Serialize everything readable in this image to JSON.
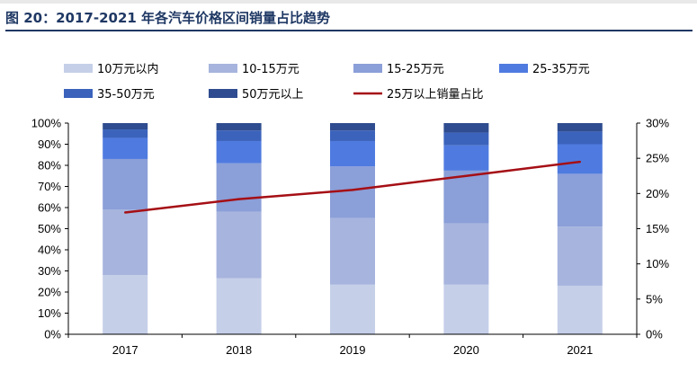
{
  "figure": {
    "title": "图 20：2017-2021 年各汽车价格区间销量占比趋势"
  },
  "chart_data": {
    "type": "bar",
    "stacked": true,
    "categories": [
      "2017",
      "2018",
      "2019",
      "2020",
      "2021"
    ],
    "series": [
      {
        "name": "10万元以内",
        "color": "#c5cfe8",
        "values": [
          28,
          26.5,
          23.5,
          23.5,
          23
        ]
      },
      {
        "name": "10-15万元",
        "color": "#a7b4dd",
        "values": [
          31,
          31.5,
          31.5,
          29,
          28
        ]
      },
      {
        "name": "15-25万元",
        "color": "#8b9fd8",
        "values": [
          24,
          23,
          24.5,
          25,
          25
        ]
      },
      {
        "name": "25-35万元",
        "color": "#4f7be0",
        "values": [
          10,
          10.5,
          12,
          12,
          14
        ]
      },
      {
        "name": "35-50万元",
        "color": "#3b63bc",
        "values": [
          4,
          5,
          5,
          6,
          6
        ]
      },
      {
        "name": "50万元以上",
        "color": "#2e4c8f",
        "values": [
          3,
          3.5,
          3.5,
          4.5,
          4
        ]
      }
    ],
    "line": {
      "name": "25万以上销量占比",
      "color": "#a50f15",
      "axis": "right",
      "values": [
        17.3,
        19.2,
        20.5,
        22.5,
        24.5
      ]
    },
    "y_left": {
      "ylim": [
        0,
        100
      ],
      "ticks": [
        "0%",
        "10%",
        "20%",
        "30%",
        "40%",
        "50%",
        "60%",
        "70%",
        "80%",
        "90%",
        "100%"
      ]
    },
    "y_right": {
      "ylim": [
        0,
        30
      ],
      "ticks": [
        "0%",
        "5%",
        "10%",
        "15%",
        "20%",
        "25%",
        "30%"
      ]
    },
    "legend_position": "top",
    "grid": false
  }
}
